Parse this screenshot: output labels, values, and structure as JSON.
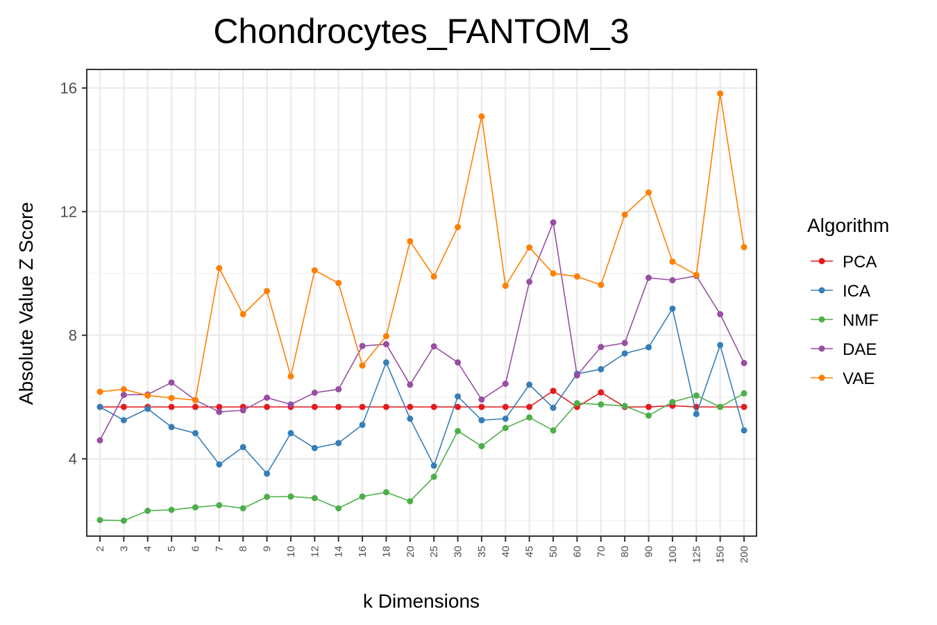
{
  "chart_data": {
    "type": "line",
    "title": "Chondrocytes_FANTOM_3",
    "xlabel": "k Dimensions",
    "ylabel": "Absolute Value Z Score",
    "categories": [
      "2",
      "3",
      "4",
      "5",
      "6",
      "7",
      "8",
      "9",
      "10",
      "12",
      "14",
      "16",
      "18",
      "20",
      "25",
      "30",
      "35",
      "40",
      "45",
      "50",
      "60",
      "70",
      "80",
      "90",
      "100",
      "125",
      "150",
      "200"
    ],
    "yticks": [
      4,
      8,
      12,
      16
    ],
    "ylim": [
      1.5,
      16.6
    ],
    "grid": true,
    "legend": {
      "title": "Algorithm",
      "position": "right"
    },
    "series": [
      {
        "name": "PCA",
        "color": "#e41a1c",
        "values": [
          5.68,
          5.68,
          5.68,
          5.68,
          5.68,
          5.68,
          5.68,
          5.68,
          5.68,
          5.68,
          5.68,
          5.68,
          5.68,
          5.68,
          5.68,
          5.68,
          5.68,
          5.68,
          5.68,
          6.2,
          5.68,
          6.15,
          5.68,
          5.68,
          5.72,
          5.68,
          5.68,
          5.68
        ]
      },
      {
        "name": "ICA",
        "color": "#377eb8",
        "values": [
          5.68,
          5.25,
          5.62,
          5.03,
          4.83,
          3.82,
          4.38,
          3.52,
          4.83,
          4.35,
          4.51,
          5.1,
          7.12,
          5.3,
          3.78,
          6.02,
          5.25,
          5.3,
          6.4,
          5.65,
          6.75,
          6.9,
          7.41,
          7.61,
          8.86,
          5.45,
          7.68,
          4.92
        ]
      },
      {
        "name": "NMF",
        "color": "#4daf4a",
        "values": [
          2.02,
          2.0,
          2.32,
          2.35,
          2.43,
          2.5,
          2.4,
          2.77,
          2.78,
          2.73,
          2.4,
          2.78,
          2.92,
          2.63,
          3.42,
          4.9,
          4.41,
          5.0,
          5.34,
          4.92,
          5.8,
          5.76,
          5.71,
          5.4,
          5.84,
          6.05,
          5.68,
          6.12
        ]
      },
      {
        "name": "DAE",
        "color": "#984ea3",
        "values": [
          4.6,
          6.07,
          6.08,
          6.47,
          5.9,
          5.52,
          5.57,
          5.98,
          5.76,
          6.14,
          6.25,
          7.65,
          7.71,
          6.4,
          7.64,
          7.12,
          5.92,
          6.43,
          9.73,
          11.65,
          6.7,
          7.62,
          7.75,
          9.86,
          9.78,
          9.92,
          8.68,
          7.1
        ]
      },
      {
        "name": "VAE",
        "color": "#ff7f00",
        "values": [
          6.17,
          6.25,
          6.05,
          5.97,
          5.9,
          10.17,
          8.68,
          9.43,
          6.67,
          10.1,
          9.69,
          7.02,
          7.97,
          11.04,
          9.9,
          11.5,
          15.08,
          9.6,
          10.84,
          10.0,
          9.9,
          9.63,
          11.9,
          12.62,
          10.38,
          9.95,
          15.82,
          10.85
        ]
      }
    ]
  }
}
